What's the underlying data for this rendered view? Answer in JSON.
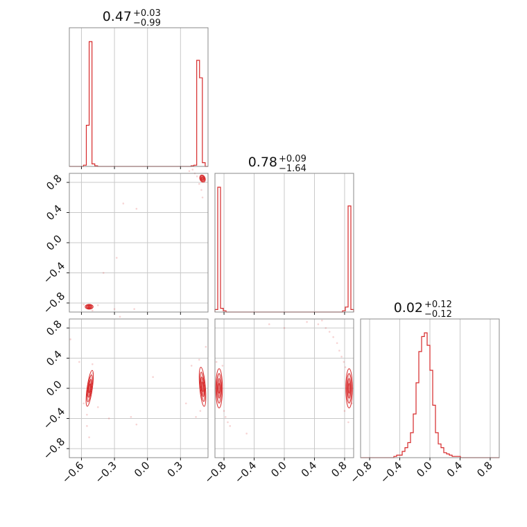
{
  "chart_data": {
    "type": "corner",
    "color": "#d62728",
    "tick_labels": {
      "p1": [
        "−0.6",
        "−0.3",
        "0.0",
        "0.3"
      ],
      "p2": [
        "−0.8",
        "−0.4",
        "0.0",
        "0.4",
        "0.8"
      ],
      "p3": [
        "−0.8",
        "−0.4",
        "0.0",
        "0.4",
        "0.8"
      ]
    },
    "parameters": [
      {
        "id": "p1",
        "range": [
          -0.71,
          0.55
        ],
        "ticks": [
          -0.6,
          -0.3,
          0.0,
          0.3
        ],
        "title": {
          "median": "0.47",
          "plus": "+0.03",
          "minus": "−0.99"
        },
        "hist": {
          "edges": [
            -0.71,
            0.55
          ],
          "counts": [
            0,
            0,
            0,
            0,
            0,
            0.01,
            0.33,
            1.0,
            0.02,
            0.005,
            0,
            0,
            0,
            0,
            0,
            0,
            0,
            0,
            0,
            0,
            0,
            0,
            0,
            0,
            0,
            0,
            0,
            0,
            0,
            0,
            0,
            0,
            0,
            0,
            0,
            0,
            0,
            0,
            0,
            0,
            0,
            0,
            0,
            0.005,
            0.01,
            0.85,
            0.71,
            0.03,
            0
          ]
        }
      },
      {
        "id": "p2",
        "range": [
          -0.92,
          0.92
        ],
        "ticks": [
          -0.8,
          -0.4,
          0.0,
          0.4,
          0.8
        ],
        "title": {
          "median": "0.78",
          "plus": "+0.09",
          "minus": "−1.64"
        },
        "hist": {
          "edges": [
            -0.92,
            0.92
          ],
          "counts": [
            0.02,
            1.0,
            0.03,
            0.01,
            0,
            0,
            0,
            0,
            0,
            0,
            0,
            0,
            0,
            0,
            0,
            0,
            0,
            0,
            0,
            0,
            0,
            0,
            0,
            0,
            0,
            0,
            0,
            0,
            0,
            0,
            0,
            0,
            0,
            0,
            0,
            0,
            0,
            0,
            0,
            0,
            0,
            0,
            0,
            0,
            0,
            0,
            0.01,
            0.04,
            0.85,
            0.02
          ]
        }
      },
      {
        "id": "p3",
        "range": [
          -0.92,
          0.92
        ],
        "ticks": [
          -0.8,
          -0.4,
          0.0,
          0.4,
          0.8
        ],
        "title": {
          "median": "0.02",
          "plus": "+0.12",
          "minus": "−0.12"
        },
        "hist": {
          "edges": [
            -0.92,
            0.92
          ],
          "counts": [
            0,
            0,
            0,
            0,
            0,
            0,
            0,
            0,
            0,
            0,
            0,
            0,
            0.01,
            0.02,
            0.02,
            0.05,
            0.08,
            0.12,
            0.2,
            0.35,
            0.6,
            0.85,
            0.97,
            1.0,
            0.9,
            0.7,
            0.42,
            0.2,
            0.11,
            0.08,
            0.04,
            0.03,
            0.02,
            0.01,
            0.01,
            0.01,
            0,
            0,
            0,
            0,
            0,
            0,
            0,
            0,
            0,
            0,
            0,
            0,
            0,
            0
          ]
        }
      }
    ],
    "pairs": [
      {
        "x": "p1",
        "y": "p2",
        "modes": [
          {
            "cx": 0.5,
            "cy": 0.85,
            "sx": 0.012,
            "sy": 0.025,
            "rot": -20
          },
          {
            "cx": -0.53,
            "cy": -0.85,
            "sx": 0.018,
            "sy": 0.016,
            "rot": 0
          }
        ],
        "scatter": [
          [
            0.38,
            0.95
          ],
          [
            0.43,
            0.92
          ],
          [
            0.47,
            0.78
          ],
          [
            0.49,
            0.7
          ],
          [
            0.5,
            0.6
          ],
          [
            0.45,
            0.88
          ],
          [
            0.41,
            0.97
          ],
          [
            -0.1,
            0.45
          ],
          [
            -0.22,
            0.52
          ],
          [
            -0.4,
            -0.4
          ],
          [
            -0.12,
            -0.88
          ],
          [
            -0.28,
            -0.2
          ],
          [
            -0.45,
            -0.83
          ],
          [
            -0.5,
            -0.9
          ],
          [
            -0.58,
            -0.82
          ],
          [
            -0.3,
            -0.88
          ]
        ]
      },
      {
        "x": "p1",
        "y": "p3",
        "modes": [
          {
            "cx": -0.525,
            "cy": 0.0,
            "sx": 0.012,
            "sy": 0.12,
            "rot": 8
          },
          {
            "cx": 0.5,
            "cy": 0.02,
            "sx": 0.013,
            "sy": 0.13,
            "rot": -5
          }
        ],
        "scatter": [
          [
            -0.62,
            0.35
          ],
          [
            -0.58,
            -0.2
          ],
          [
            -0.55,
            -0.35
          ],
          [
            -0.55,
            -0.5
          ],
          [
            -0.53,
            -0.65
          ],
          [
            -0.5,
            0.32
          ],
          [
            -0.45,
            -0.25
          ],
          [
            -0.35,
            -0.4
          ],
          [
            -0.15,
            -0.38
          ],
          [
            -0.1,
            -0.48
          ],
          [
            -0.7,
            0.65
          ],
          [
            0.4,
            0.3
          ],
          [
            0.44,
            -0.38
          ],
          [
            0.47,
            0.38
          ],
          [
            0.53,
            0.55
          ],
          [
            0.48,
            -0.3
          ],
          [
            0.35,
            -0.2
          ],
          [
            -0.25,
            0.95
          ],
          [
            0.05,
            0.15
          ],
          [
            -0.5,
            0.2
          ]
        ]
      },
      {
        "x": "p2",
        "y": "p3",
        "modes": [
          {
            "cx": -0.865,
            "cy": 0.0,
            "sx": 0.022,
            "sy": 0.13,
            "rot": 0
          },
          {
            "cx": 0.86,
            "cy": 0.0,
            "sx": 0.022,
            "sy": 0.13,
            "rot": 0
          }
        ],
        "scatter": [
          [
            0.6,
            0.75
          ],
          [
            0.65,
            0.68
          ],
          [
            0.7,
            0.6
          ],
          [
            0.73,
            0.5
          ],
          [
            0.76,
            0.42
          ],
          [
            0.79,
            0.35
          ],
          [
            0.81,
            0.28
          ],
          [
            0.55,
            0.8
          ],
          [
            0.45,
            0.85
          ],
          [
            0.5,
            0.9
          ],
          [
            0.8,
            -0.3
          ],
          [
            -0.8,
            -0.3
          ],
          [
            -0.78,
            -0.38
          ],
          [
            -0.75,
            -0.45
          ],
          [
            -0.72,
            -0.5
          ],
          [
            -0.5,
            -0.6
          ],
          [
            -0.82,
            0.3
          ],
          [
            -0.9,
            0.35
          ],
          [
            0.0,
            0.8
          ],
          [
            -0.2,
            0.85
          ],
          [
            0.3,
            0.88
          ],
          [
            0.9,
            -0.2
          ],
          [
            0.85,
            -0.45
          ]
        ]
      }
    ]
  }
}
